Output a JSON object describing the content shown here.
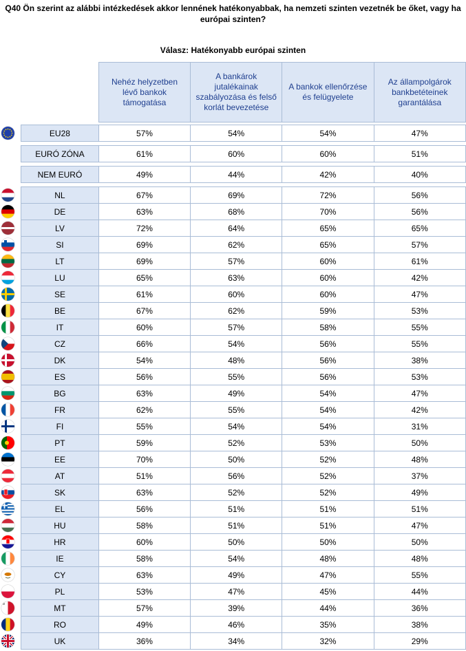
{
  "title_line1": "Q40 Ön szerint az alábbi intézkedések akkor lennének hatékonyabbak, ha nemzeti szinten vezetnék be őket, vagy ha",
  "title_line2": "európai szinten?",
  "subtitle": "Válasz: Hatékonyabb európai szinten",
  "columns": [
    "Nehéz helyzetben lévő bankok támogatása",
    "A bankárok jutalékainak szabályozása és felső korlát bevezetése",
    "A bankok ellenőrzése és felügyelete",
    "Az állampolgárok bankbetéteinek garantálása"
  ],
  "aggregates": [
    {
      "label": "EU28",
      "values": [
        "57%",
        "54%",
        "54%",
        "47%"
      ]
    },
    {
      "label": "EURÓ ZÓNA",
      "values": [
        "61%",
        "60%",
        "60%",
        "51%"
      ]
    },
    {
      "label": "NEM EURÓ",
      "values": [
        "49%",
        "44%",
        "42%",
        "40%"
      ]
    }
  ],
  "countries": [
    {
      "label": "NL",
      "values": [
        "67%",
        "69%",
        "72%",
        "56%"
      ],
      "flag": "netherlands-flag-icon"
    },
    {
      "label": "DE",
      "values": [
        "63%",
        "68%",
        "70%",
        "56%"
      ],
      "flag": "germany-flag-icon"
    },
    {
      "label": "LV",
      "values": [
        "72%",
        "64%",
        "65%",
        "65%"
      ],
      "flag": "latvia-flag-icon"
    },
    {
      "label": "SI",
      "values": [
        "69%",
        "62%",
        "65%",
        "57%"
      ],
      "flag": "slovenia-flag-icon"
    },
    {
      "label": "LT",
      "values": [
        "69%",
        "57%",
        "60%",
        "61%"
      ],
      "flag": "lithuania-flag-icon"
    },
    {
      "label": "LU",
      "values": [
        "65%",
        "63%",
        "60%",
        "42%"
      ],
      "flag": "luxembourg-flag-icon"
    },
    {
      "label": "SE",
      "values": [
        "61%",
        "60%",
        "60%",
        "47%"
      ],
      "flag": "sweden-flag-icon"
    },
    {
      "label": "BE",
      "values": [
        "67%",
        "62%",
        "59%",
        "53%"
      ],
      "flag": "belgium-flag-icon"
    },
    {
      "label": "IT",
      "values": [
        "60%",
        "57%",
        "58%",
        "55%"
      ],
      "flag": "italy-flag-icon"
    },
    {
      "label": "CZ",
      "values": [
        "66%",
        "54%",
        "56%",
        "55%"
      ],
      "flag": "czechia-flag-icon"
    },
    {
      "label": "DK",
      "values": [
        "54%",
        "48%",
        "56%",
        "38%"
      ],
      "flag": "denmark-flag-icon"
    },
    {
      "label": "ES",
      "values": [
        "56%",
        "55%",
        "56%",
        "53%"
      ],
      "flag": "spain-flag-icon"
    },
    {
      "label": "BG",
      "values": [
        "63%",
        "49%",
        "54%",
        "47%"
      ],
      "flag": "bulgaria-flag-icon"
    },
    {
      "label": "FR",
      "values": [
        "62%",
        "55%",
        "54%",
        "42%"
      ],
      "flag": "france-flag-icon"
    },
    {
      "label": "FI",
      "values": [
        "55%",
        "54%",
        "54%",
        "31%"
      ],
      "flag": "finland-flag-icon"
    },
    {
      "label": "PT",
      "values": [
        "59%",
        "52%",
        "53%",
        "50%"
      ],
      "flag": "portugal-flag-icon"
    },
    {
      "label": "EE",
      "values": [
        "70%",
        "50%",
        "52%",
        "48%"
      ],
      "flag": "estonia-flag-icon"
    },
    {
      "label": "AT",
      "values": [
        "51%",
        "56%",
        "52%",
        "37%"
      ],
      "flag": "austria-flag-icon"
    },
    {
      "label": "SK",
      "values": [
        "63%",
        "52%",
        "52%",
        "49%"
      ],
      "flag": "slovakia-flag-icon"
    },
    {
      "label": "EL",
      "values": [
        "56%",
        "51%",
        "51%",
        "51%"
      ],
      "flag": "greece-flag-icon"
    },
    {
      "label": "HU",
      "values": [
        "58%",
        "51%",
        "51%",
        "47%"
      ],
      "flag": "hungary-flag-icon"
    },
    {
      "label": "HR",
      "values": [
        "60%",
        "50%",
        "50%",
        "50%"
      ],
      "flag": "croatia-flag-icon"
    },
    {
      "label": "IE",
      "values": [
        "58%",
        "54%",
        "48%",
        "48%"
      ],
      "flag": "ireland-flag-icon"
    },
    {
      "label": "CY",
      "values": [
        "63%",
        "49%",
        "47%",
        "55%"
      ],
      "flag": "cyprus-flag-icon"
    },
    {
      "label": "PL",
      "values": [
        "53%",
        "47%",
        "45%",
        "44%"
      ],
      "flag": "poland-flag-icon"
    },
    {
      "label": "MT",
      "values": [
        "57%",
        "39%",
        "44%",
        "36%"
      ],
      "flag": "malta-flag-icon"
    },
    {
      "label": "RO",
      "values": [
        "49%",
        "46%",
        "35%",
        "38%"
      ],
      "flag": "romania-flag-icon"
    },
    {
      "label": "UK",
      "values": [
        "36%",
        "34%",
        "32%",
        "29%"
      ],
      "flag": "uk-flag-icon"
    }
  ],
  "eu_flag": "eu-flag-icon"
}
